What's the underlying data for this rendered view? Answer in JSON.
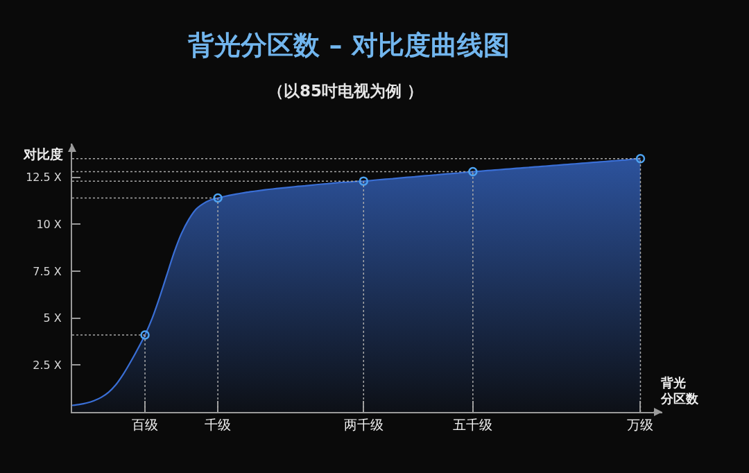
{
  "chart_data": {
    "type": "area",
    "title": "背光分区数 – 对比度曲线图",
    "subtitle": "（以85吋电视为例 ）",
    "xlabel": "背光分区数",
    "ylabel": "对比度",
    "categories": [
      null,
      null,
      null,
      null,
      null,
      null,
      null,
      null,
      null,
      null,
      "百级",
      null,
      null,
      null,
      null,
      null,
      null,
      null,
      null,
      null,
      "千级",
      null,
      null,
      null,
      null,
      null,
      null,
      null,
      null,
      null,
      null,
      null,
      null,
      null,
      null,
      null,
      null,
      null,
      null,
      null,
      "两千级",
      null,
      null,
      null,
      null,
      null,
      null,
      null,
      null,
      null,
      null,
      null,
      null,
      null,
      null,
      "五千级",
      null,
      null,
      null,
      null,
      null,
      null,
      null,
      null,
      null,
      null,
      null,
      null,
      null,
      null,
      null,
      null,
      null,
      null,
      null,
      null,
      null,
      null,
      "万级",
      null,
      null,
      null
    ],
    "ylim": [
      0,
      14.3
    ],
    "yticks": [
      {
        "value": 2.5,
        "label": "2.5 X"
      },
      {
        "value": 5,
        "label": "5 X"
      },
      {
        "value": 7.5,
        "label": "7.5 X"
      },
      {
        "value": 10,
        "label": "10 X"
      },
      {
        "value": 12.5,
        "label": "12.5 X"
      }
    ],
    "series": [
      {
        "color": "#3a6fd6",
        "values": [
          0.35,
          0.4,
          0.48,
          0.6,
          0.78,
          1.05,
          1.45,
          2.0,
          2.65,
          3.35,
          4.1,
          5.0,
          6.1,
          7.3,
          8.5,
          9.5,
          10.25,
          10.8,
          11.1,
          11.3,
          11.4,
          11.49,
          11.57,
          11.64,
          11.71,
          11.76,
          11.81,
          11.86,
          11.9,
          11.94,
          11.98,
          12.02,
          12.05,
          12.09,
          12.13,
          12.16,
          12.2,
          12.23,
          12.25,
          12.28,
          12.3,
          12.33,
          12.37,
          12.4,
          12.43,
          12.47,
          12.5,
          12.53,
          12.57,
          12.6,
          12.63,
          12.67,
          12.7,
          12.73,
          12.77,
          12.8,
          12.83,
          12.86,
          12.89,
          12.92,
          12.95,
          12.98,
          13.01,
          13.04,
          13.07,
          13.1,
          13.13,
          13.16,
          13.19,
          13.22,
          13.25,
          13.28,
          13.31,
          13.34,
          13.37,
          13.4,
          13.43,
          13.47,
          13.5,
          null,
          null,
          null
        ]
      },
      {
        "type": "line",
        "color": "#a8a8a8",
        "line_style": "dotted",
        "values": [
          4.1,
          4.1,
          4.1,
          4.1,
          4.1,
          4.1,
          4.1,
          4.1,
          4.1,
          4.1,
          4.1,
          null,
          null,
          null,
          null,
          null,
          null,
          null,
          null,
          null,
          null,
          null,
          null,
          null,
          null,
          null,
          null,
          null,
          null,
          null,
          null,
          null,
          null,
          null,
          null,
          null,
          null,
          null,
          null,
          null,
          null,
          null,
          null,
          null,
          null,
          null,
          null,
          null,
          null,
          null,
          null,
          null,
          null,
          null,
          null,
          null,
          null,
          null,
          null,
          null,
          null,
          null,
          null,
          null,
          null,
          null,
          null,
          null,
          null,
          null,
          null,
          null,
          null,
          null,
          null,
          null,
          null,
          null,
          null,
          null,
          null,
          null
        ]
      },
      {
        "type": "line",
        "color": "#a8a8a8",
        "line_style": "dotted",
        "values": [
          11.4,
          11.4,
          11.4,
          11.4,
          11.4,
          11.4,
          11.4,
          11.4,
          11.4,
          11.4,
          11.4,
          11.4,
          11.4,
          11.4,
          11.4,
          11.4,
          11.4,
          11.4,
          11.4,
          11.4,
          11.4,
          null,
          null,
          null,
          null,
          null,
          null,
          null,
          null,
          null,
          null,
          null,
          null,
          null,
          null,
          null,
          null,
          null,
          null,
          null,
          null,
          null,
          null,
          null,
          null,
          null,
          null,
          null,
          null,
          null,
          null,
          null,
          null,
          null,
          null,
          null,
          null,
          null,
          null,
          null,
          null,
          null,
          null,
          null,
          null,
          null,
          null,
          null,
          null,
          null,
          null,
          null,
          null,
          null,
          null,
          null,
          null,
          null,
          null,
          null,
          null,
          null
        ]
      },
      {
        "type": "line",
        "color": "#a8a8a8",
        "line_style": "dotted",
        "values": [
          12.3,
          12.3,
          12.3,
          12.3,
          12.3,
          12.3,
          12.3,
          12.3,
          12.3,
          12.3,
          12.3,
          12.3,
          12.3,
          12.3,
          12.3,
          12.3,
          12.3,
          12.3,
          12.3,
          12.3,
          12.3,
          12.3,
          12.3,
          12.3,
          12.3,
          12.3,
          12.3,
          12.3,
          12.3,
          12.3,
          12.3,
          12.3,
          12.3,
          12.3,
          12.3,
          12.3,
          12.3,
          12.3,
          12.3,
          12.3,
          12.3,
          null,
          null,
          null,
          null,
          null,
          null,
          null,
          null,
          null,
          null,
          null,
          null,
          null,
          null,
          null,
          null,
          null,
          null,
          null,
          null,
          null,
          null,
          null,
          null,
          null,
          null,
          null,
          null,
          null,
          null,
          null,
          null,
          null,
          null,
          null,
          null,
          null,
          null,
          null,
          null,
          null
        ]
      },
      {
        "type": "line",
        "color": "#a8a8a8",
        "line_style": "dotted",
        "values": [
          12.8,
          12.8,
          12.8,
          12.8,
          12.8,
          12.8,
          12.8,
          12.8,
          12.8,
          12.8,
          12.8,
          12.8,
          12.8,
          12.8,
          12.8,
          12.8,
          12.8,
          12.8,
          12.8,
          12.8,
          12.8,
          12.8,
          12.8,
          12.8,
          12.8,
          12.8,
          12.8,
          12.8,
          12.8,
          12.8,
          12.8,
          12.8,
          12.8,
          12.8,
          12.8,
          12.8,
          12.8,
          12.8,
          12.8,
          12.8,
          12.8,
          12.8,
          12.8,
          12.8,
          12.8,
          12.8,
          12.8,
          12.8,
          12.8,
          12.8,
          12.8,
          12.8,
          12.8,
          12.8,
          12.8,
          12.8,
          null,
          null,
          null,
          null,
          null,
          null,
          null,
          null,
          null,
          null,
          null,
          null,
          null,
          null,
          null,
          null,
          null,
          null,
          null,
          null,
          null,
          null,
          null,
          null,
          null,
          null
        ]
      },
      {
        "type": "line",
        "color": "#a8a8a8",
        "line_style": "dotted",
        "values": [
          13.5,
          13.5,
          13.5,
          13.5,
          13.5,
          13.5,
          13.5,
          13.5,
          13.5,
          13.5,
          13.5,
          13.5,
          13.5,
          13.5,
          13.5,
          13.5,
          13.5,
          13.5,
          13.5,
          13.5,
          13.5,
          13.5,
          13.5,
          13.5,
          13.5,
          13.5,
          13.5,
          13.5,
          13.5,
          13.5,
          13.5,
          13.5,
          13.5,
          13.5,
          13.5,
          13.5,
          13.5,
          13.5,
          13.5,
          13.5,
          13.5,
          13.5,
          13.5,
          13.5,
          13.5,
          13.5,
          13.5,
          13.5,
          13.5,
          13.5,
          13.5,
          13.5,
          13.5,
          13.5,
          13.5,
          13.5,
          13.5,
          13.5,
          13.5,
          13.5,
          13.5,
          13.5,
          13.5,
          13.5,
          13.5,
          13.5,
          13.5,
          13.5,
          13.5,
          13.5,
          13.5,
          13.5,
          13.5,
          13.5,
          13.5,
          13.5,
          13.5,
          13.5,
          13.5,
          null,
          null,
          null
        ]
      },
      {
        "type": "lollipop",
        "color": "#4da3f2",
        "marker": "circle",
        "line_style": "dotted",
        "values": [
          null,
          null,
          null,
          null,
          null,
          null,
          null,
          null,
          null,
          null,
          4.1,
          null,
          null,
          null,
          null,
          null,
          null,
          null,
          null,
          null,
          11.4,
          null,
          null,
          null,
          null,
          null,
          null,
          null,
          null,
          null,
          null,
          null,
          null,
          null,
          null,
          null,
          null,
          null,
          null,
          null,
          12.3,
          null,
          null,
          null,
          null,
          null,
          null,
          null,
          null,
          null,
          null,
          null,
          null,
          null,
          null,
          12.8,
          null,
          null,
          null,
          null,
          null,
          null,
          null,
          null,
          null,
          null,
          null,
          null,
          null,
          null,
          null,
          null,
          null,
          null,
          null,
          null,
          null,
          null,
          13.5,
          null,
          null,
          null
        ]
      }
    ]
  }
}
